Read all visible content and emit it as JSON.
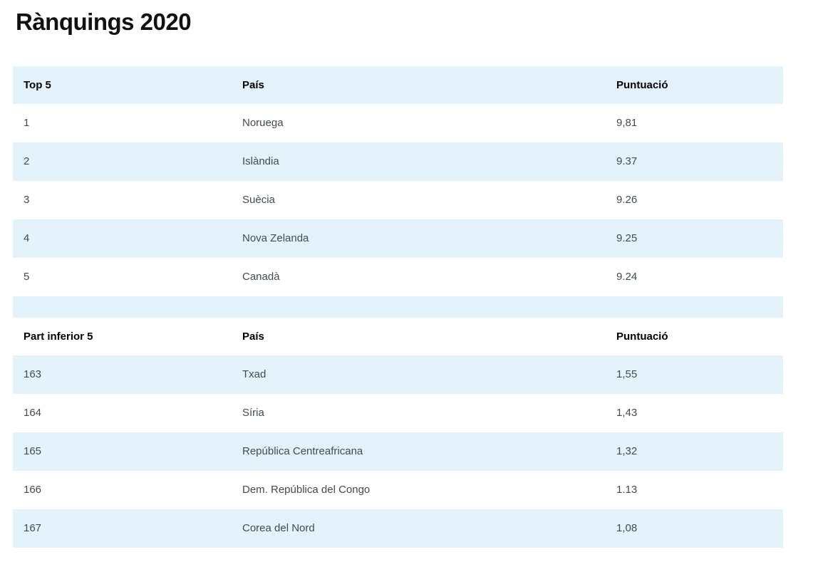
{
  "page": {
    "title": "Rànquings 2020"
  },
  "colors": {
    "row_stripe_bg": "#e4f2fc",
    "header_text": "#000000",
    "body_text": "#404b53",
    "title_text": "#111111",
    "page_bg": "#ffffff"
  },
  "top_table": {
    "headers": {
      "rank": "Top 5",
      "country": "País",
      "score": "Puntuació"
    },
    "rows": [
      {
        "rank": "1",
        "country": "Noruega",
        "score": "9,81"
      },
      {
        "rank": "2",
        "country": "Islàndia",
        "score": "9.37"
      },
      {
        "rank": "3",
        "country": "Suècia",
        "score": "9.26"
      },
      {
        "rank": "4",
        "country": "Nova Zelanda",
        "score": "9.25"
      },
      {
        "rank": "5",
        "country": "Canadà",
        "score": "9.24"
      }
    ]
  },
  "bottom_table": {
    "headers": {
      "rank": "Part inferior 5",
      "country": "País",
      "score": "Puntuació"
    },
    "rows": [
      {
        "rank": "163",
        "country": "Txad",
        "score": "1,55"
      },
      {
        "rank": "164",
        "country": "Síria",
        "score": "1,43"
      },
      {
        "rank": "165",
        "country": "República Centreafricana",
        "score": "1,32"
      },
      {
        "rank": "166",
        "country": "Dem. República del Congo",
        "score": "1.13"
      },
      {
        "rank": "167",
        "country": "Corea del Nord",
        "score": "1,08"
      }
    ]
  }
}
